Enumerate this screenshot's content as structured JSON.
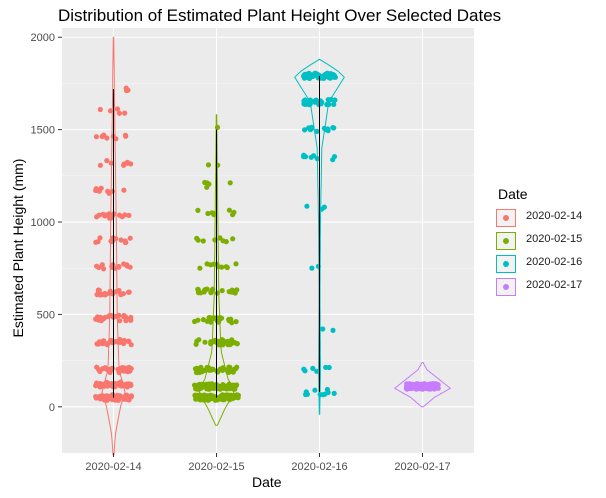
{
  "chart_data": {
    "type": "violin-jitter",
    "title": "Distribution of Estimated Plant Height Over Selected Dates",
    "xlabel": "Date",
    "ylabel": "Estimated Plant Height (mm)",
    "categories": [
      "2020-02-14",
      "2020-02-15",
      "2020-02-16",
      "2020-02-17"
    ],
    "yticks": [
      0,
      500,
      1000,
      1500,
      2000
    ],
    "ylim": [
      -250,
      2050
    ],
    "legend": {
      "title": "Date",
      "position": "right",
      "entries": [
        "2020-02-14",
        "2020-02-15",
        "2020-02-16",
        "2020-02-17"
      ]
    },
    "colors": [
      "#F8766D",
      "#7CAE00",
      "#00BFC4",
      "#C77CFF"
    ],
    "grid": true,
    "series": [
      {
        "name": "2020-02-14",
        "color": "#F8766D",
        "range": [
          -260,
          2000
        ],
        "clusters": [
          [
            50,
            60
          ],
          [
            120,
            40
          ],
          [
            200,
            30
          ],
          [
            350,
            25
          ],
          [
            480,
            25
          ],
          [
            620,
            20
          ],
          [
            760,
            15
          ],
          [
            900,
            12
          ],
          [
            1030,
            15
          ],
          [
            1170,
            10
          ],
          [
            1320,
            8
          ],
          [
            1460,
            8
          ],
          [
            1600,
            5
          ],
          [
            1720,
            3
          ]
        ],
        "spread": 18,
        "violin_width": [
          [
            -260,
            0.01
          ],
          [
            -150,
            0.04
          ],
          [
            0,
            0.15
          ],
          [
            80,
            0.25
          ],
          [
            200,
            0.12
          ],
          [
            500,
            0.08
          ],
          [
            1000,
            0.06
          ],
          [
            1500,
            0.03
          ],
          [
            2000,
            0.005
          ]
        ]
      },
      {
        "name": "2020-02-15",
        "color": "#7CAE00",
        "range": [
          -100,
          1580
        ],
        "clusters": [
          [
            50,
            90
          ],
          [
            110,
            60
          ],
          [
            200,
            40
          ],
          [
            350,
            30
          ],
          [
            470,
            20
          ],
          [
            630,
            20
          ],
          [
            760,
            10
          ],
          [
            900,
            8
          ],
          [
            1050,
            8
          ],
          [
            1200,
            5
          ],
          [
            1320,
            2
          ],
          [
            1500,
            1
          ]
        ],
        "spread": 22,
        "violin_width": [
          [
            -100,
            0.02
          ],
          [
            0,
            0.2
          ],
          [
            80,
            0.4
          ],
          [
            150,
            0.25
          ],
          [
            300,
            0.1
          ],
          [
            600,
            0.05
          ],
          [
            1000,
            0.03
          ],
          [
            1580,
            0.005
          ]
        ]
      },
      {
        "name": "2020-02-16",
        "color": "#00BFC4",
        "range": [
          -40,
          1880
        ],
        "clusters": [
          [
            80,
            10
          ],
          [
            200,
            6
          ],
          [
            420,
            2
          ],
          [
            760,
            2
          ],
          [
            1080,
            3
          ],
          [
            1350,
            8
          ],
          [
            1500,
            12
          ],
          [
            1650,
            30
          ],
          [
            1790,
            45
          ]
        ],
        "spread": 16,
        "violin_width": [
          [
            -40,
            0.005
          ],
          [
            200,
            0.02
          ],
          [
            600,
            0.01
          ],
          [
            1000,
            0.02
          ],
          [
            1400,
            0.05
          ],
          [
            1650,
            0.2
          ],
          [
            1790,
            0.55
          ],
          [
            1850,
            0.2
          ],
          [
            1880,
            0.005
          ]
        ]
      },
      {
        "name": "2020-02-17",
        "color": "#C77CFF",
        "range": [
          0,
          240
        ],
        "clusters": [
          [
            110,
            160
          ]
        ],
        "spread": 16,
        "violin_width": [
          [
            0,
            0.02
          ],
          [
            50,
            0.25
          ],
          [
            100,
            0.6
          ],
          [
            150,
            0.35
          ],
          [
            200,
            0.1
          ],
          [
            240,
            0.01
          ]
        ]
      }
    ]
  }
}
